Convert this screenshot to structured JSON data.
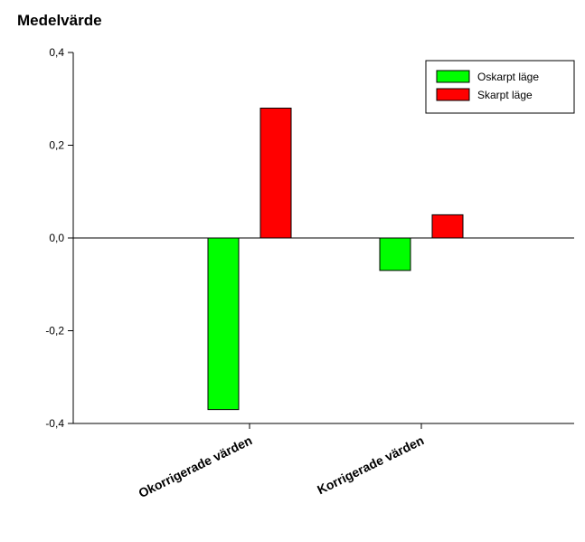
{
  "chart_data": {
    "type": "bar",
    "title": "Medelvärde",
    "xlabel": "",
    "ylabel": "",
    "categories": [
      "Okorrigerade värden",
      "Korrigerade värden"
    ],
    "series": [
      {
        "name": "Oskarpt läge",
        "color": "#00ff00",
        "values": [
          -0.37,
          -0.07
        ]
      },
      {
        "name": "Skarpt läge",
        "color": "#ff0000",
        "values": [
          0.28,
          0.05
        ]
      }
    ],
    "ylim": [
      -0.4,
      0.4
    ],
    "yticks": [
      {
        "value": 0.4,
        "label": "0,4"
      },
      {
        "value": 0.2,
        "label": "0,2"
      },
      {
        "value": 0.0,
        "label": "0,0"
      },
      {
        "value": -0.2,
        "label": "-0,2"
      },
      {
        "value": -0.4,
        "label": "-0,4"
      }
    ],
    "grid": false,
    "legend_position": "top-right",
    "zero_line": true
  }
}
